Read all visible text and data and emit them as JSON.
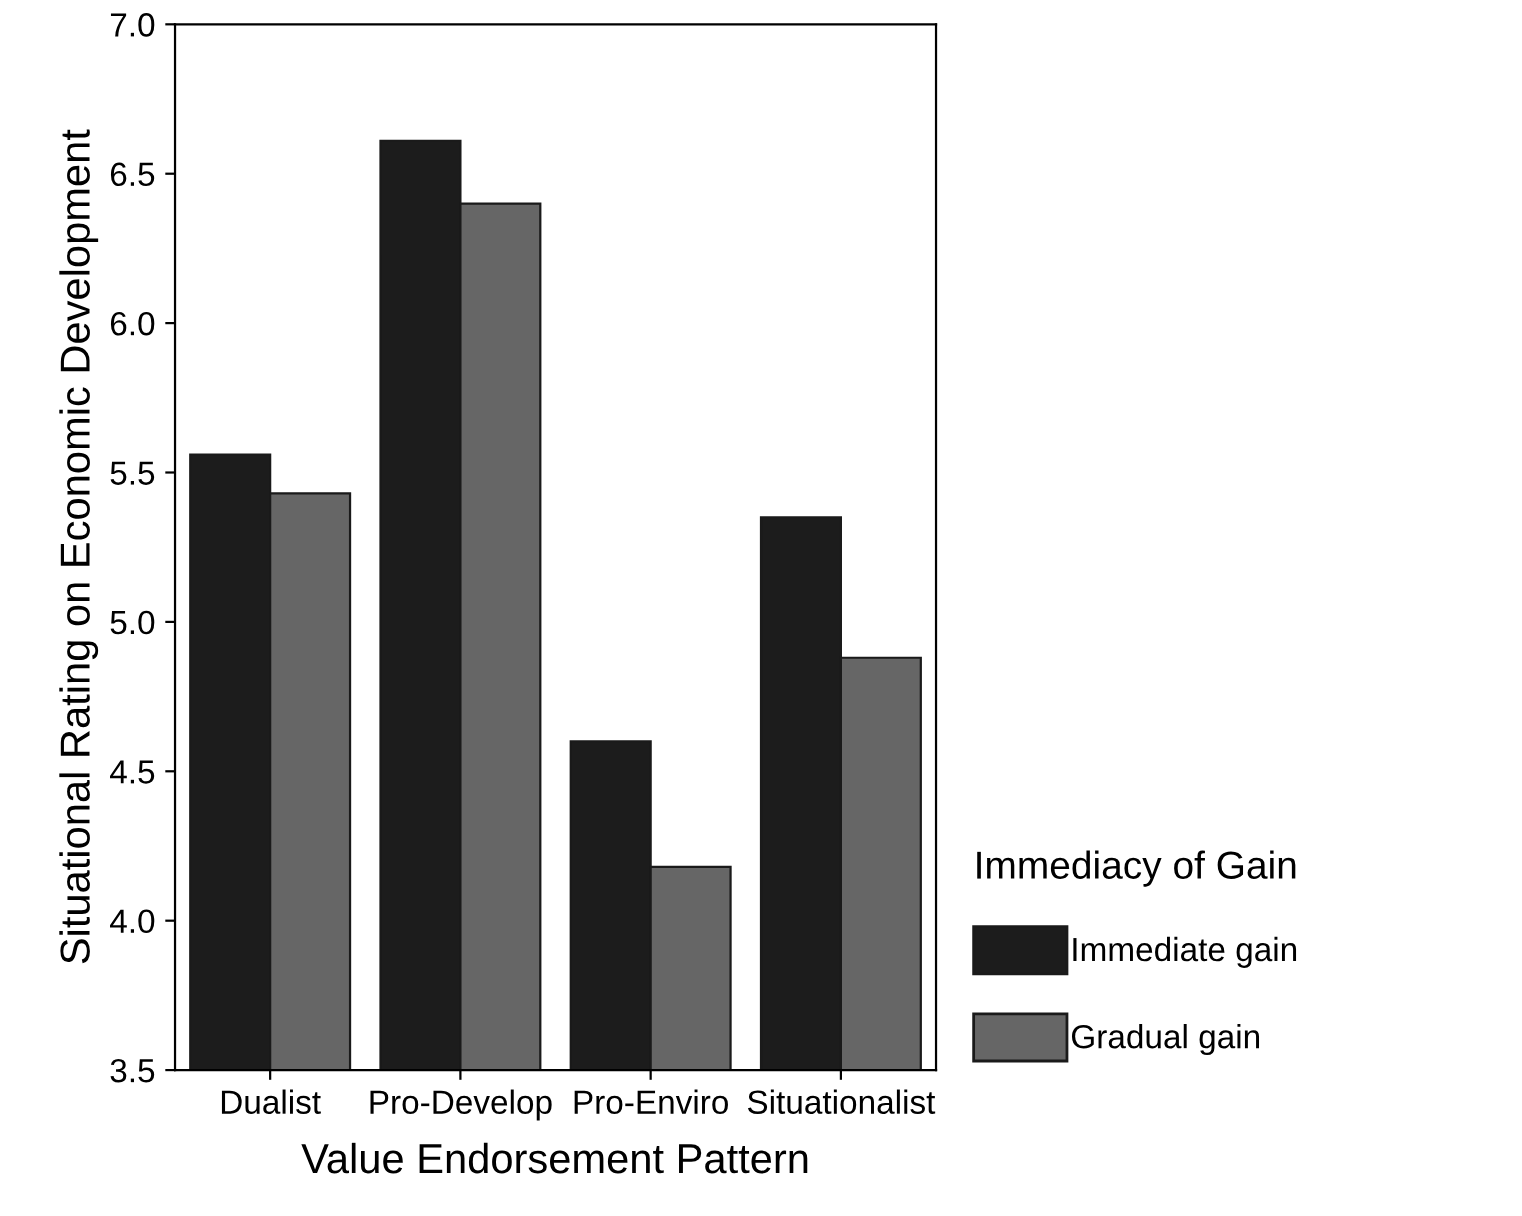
{
  "chart_data": {
    "type": "bar",
    "xlabel": "Value Endorsement Pattern",
    "ylabel": "Situational Rating on Economic Development",
    "legend_title": "Immediacy of Gain",
    "categories": [
      "Dualist",
      "Pro-Develop",
      "Pro-Enviro",
      "Situationalist"
    ],
    "series": [
      {
        "name": "Immediate gain",
        "color": "#1c1c1c",
        "values": [
          5.56,
          6.61,
          4.6,
          5.35
        ]
      },
      {
        "name": "Gradual gain",
        "color": "#666666",
        "values": [
          5.43,
          6.4,
          4.18,
          4.88
        ]
      }
    ],
    "ylim": [
      3.5,
      7.0
    ],
    "yticks": [
      {
        "value": 3.5,
        "label": "3.5"
      },
      {
        "value": 4.0,
        "label": "4.0"
      },
      {
        "value": 4.5,
        "label": "4.5"
      },
      {
        "value": 5.0,
        "label": "5.0"
      },
      {
        "value": 5.5,
        "label": "5.5"
      },
      {
        "value": 6.0,
        "label": "6.0"
      },
      {
        "value": 6.5,
        "label": "6.5"
      },
      {
        "value": 7.0,
        "label": "7.0"
      }
    ],
    "grid": false,
    "legend": "bottom right"
  }
}
